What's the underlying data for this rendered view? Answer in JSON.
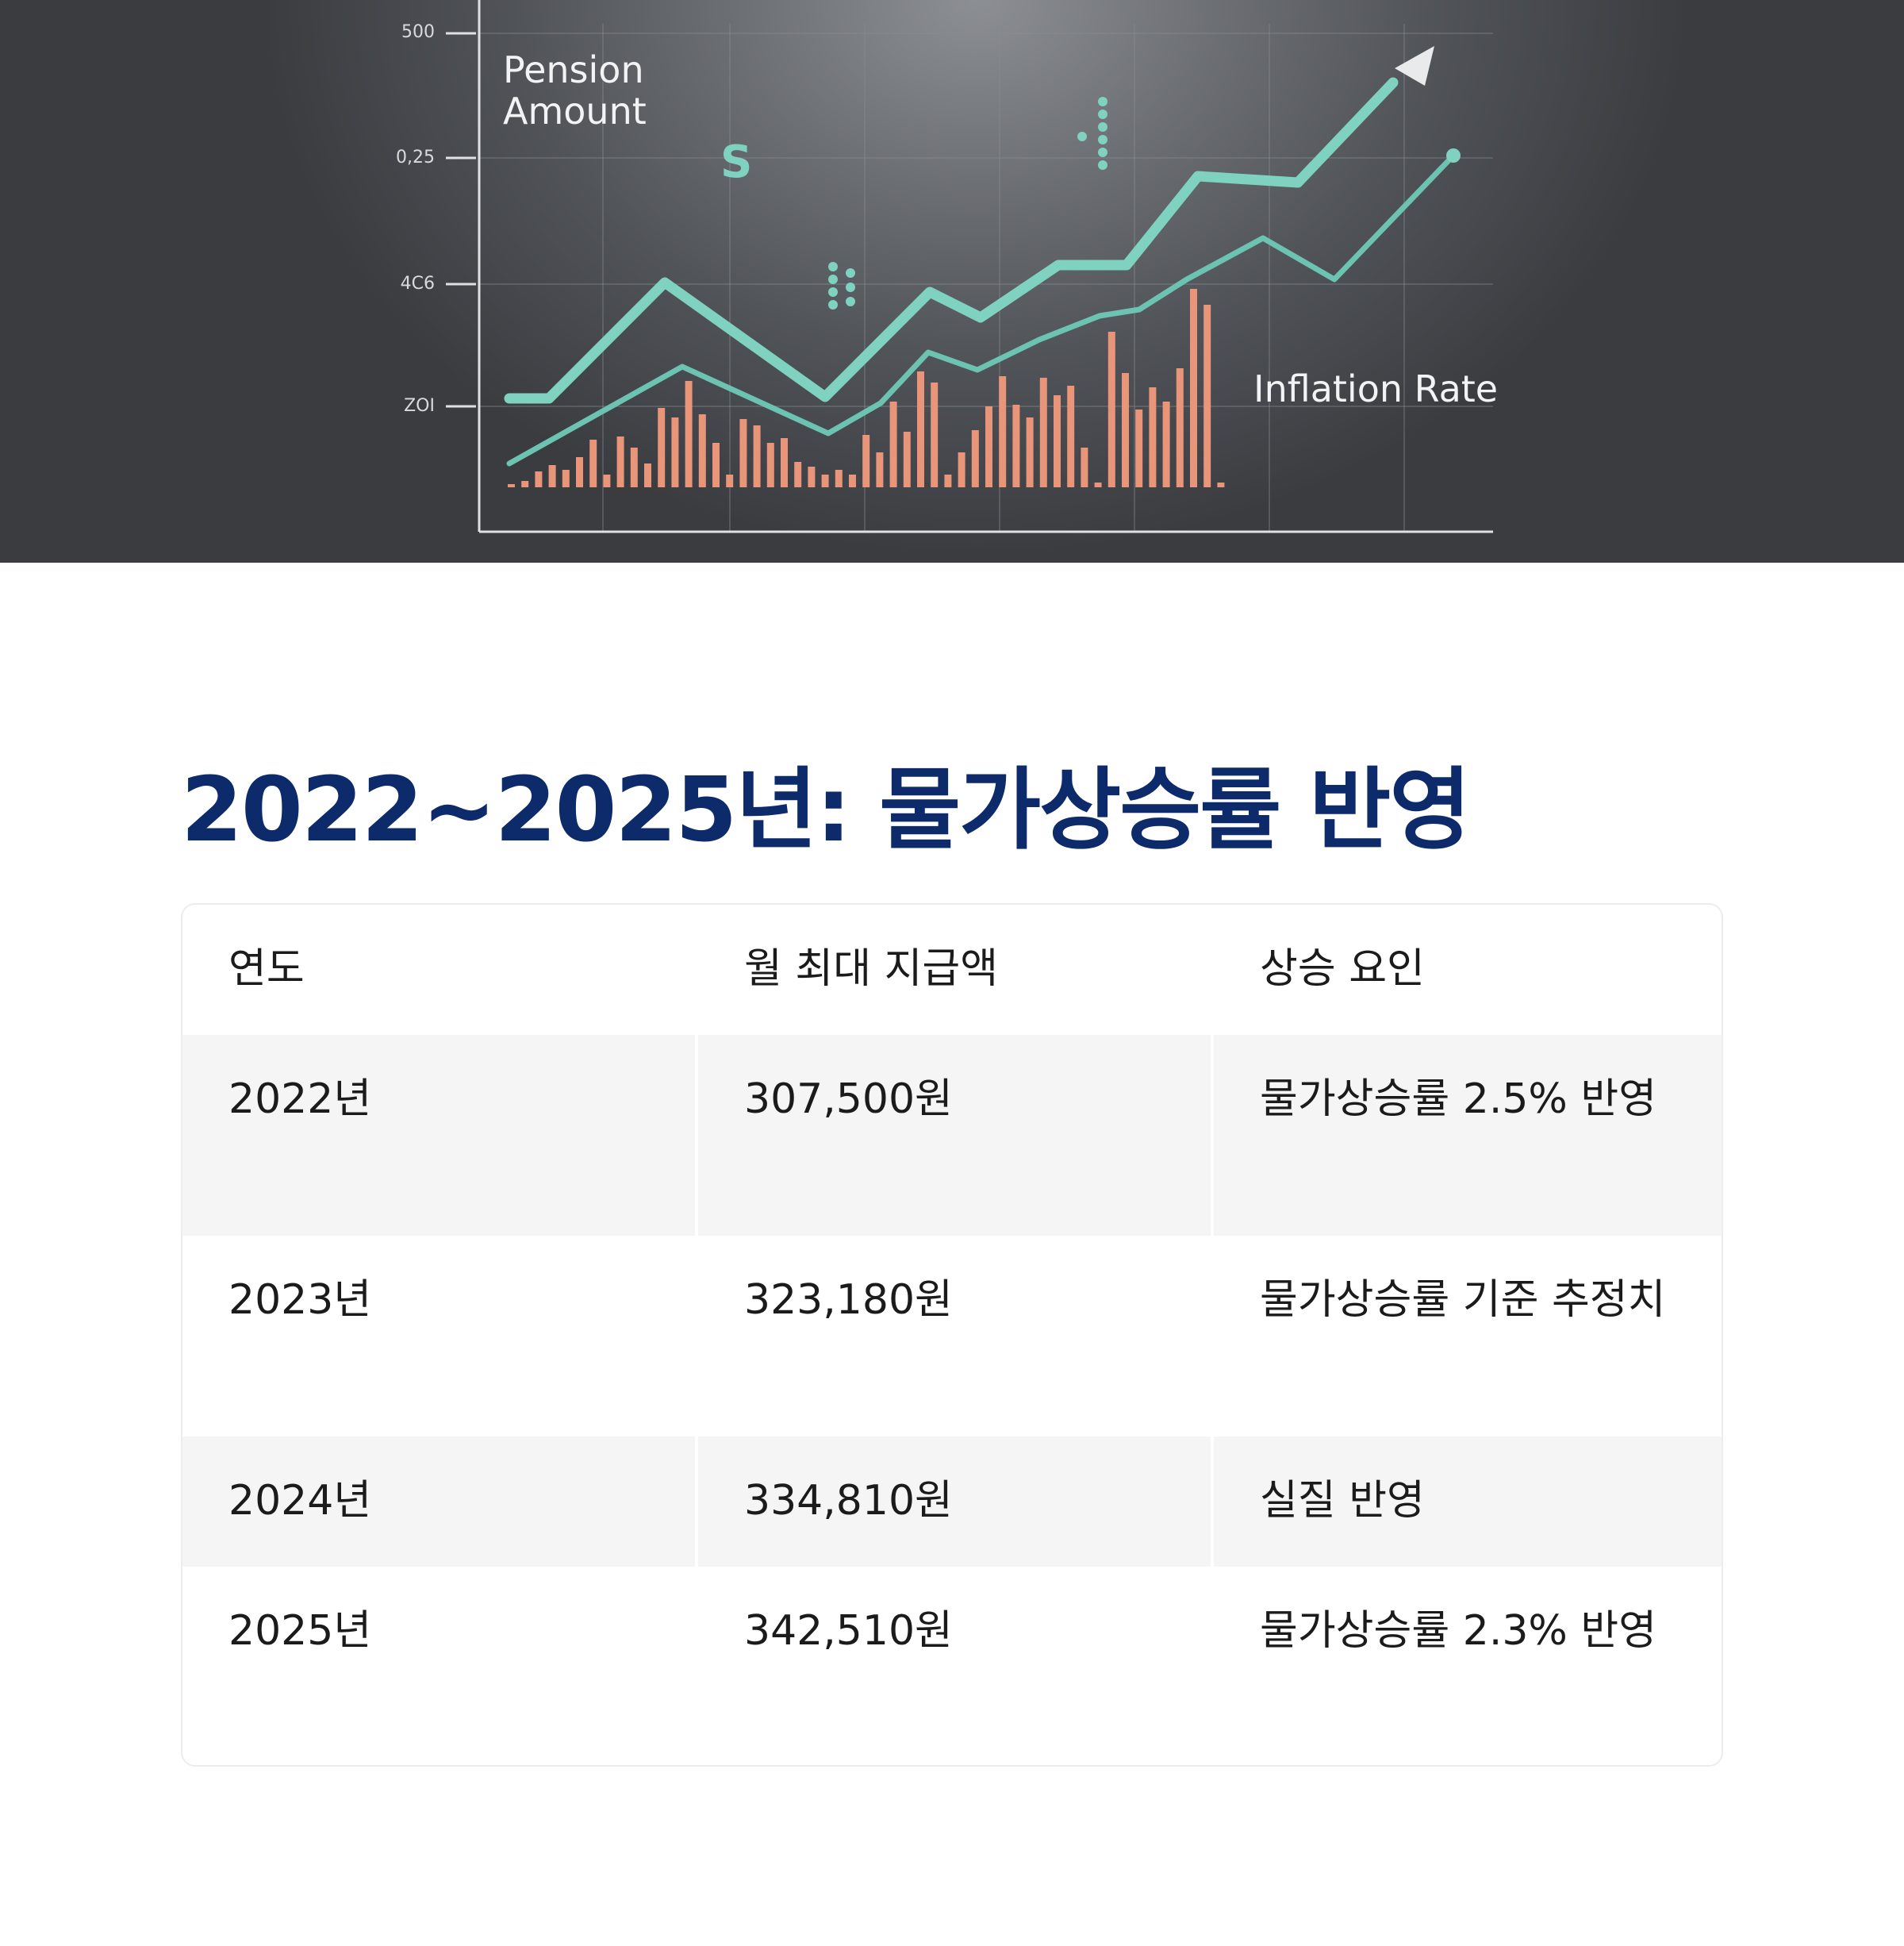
{
  "hero": {
    "legend_pension": "Pension\nAmount",
    "legend_inflation": "Inflation Rate",
    "currency_symbol": "S",
    "y_ticks": [
      "500",
      "0,25",
      "4C6",
      "ZOI"
    ],
    "colors": {
      "background": "#505358",
      "line": "#7fd2bf",
      "bars": "#e8957a",
      "arrow": "#f2f3f5"
    }
  },
  "title": "2022~2025년: 물가상승률 반영",
  "table": {
    "headers": [
      "연도",
      "월 최대 지급액",
      "상승 요인"
    ],
    "rows": [
      [
        "2022년",
        "307,500원",
        "물가상승률 2.5% 반영"
      ],
      [
        "2023년",
        "323,180원",
        "물가상승률 기준 추정치"
      ],
      [
        "2024년",
        "334,810원",
        "실질 반영"
      ],
      [
        "2025년",
        "342,510원",
        "물가상승률 2.3% 반영"
      ]
    ]
  }
}
